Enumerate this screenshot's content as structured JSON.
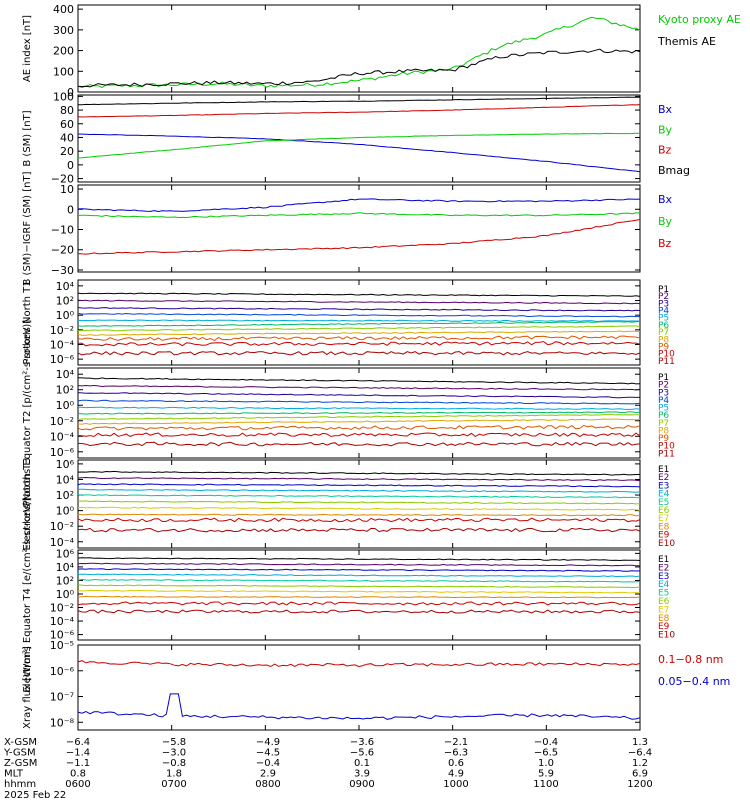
{
  "panels": [
    {
      "id": "ae",
      "ylabel": "AE index [nT]",
      "ytick_labels": [
        "0",
        "100",
        "200",
        "300",
        "400"
      ],
      "ytick_values": [
        0,
        100,
        200,
        300,
        400
      ],
      "ylim": [
        0,
        420
      ],
      "scale": "linear",
      "legend": [
        {
          "text": "Kyoto proxy AE",
          "color": "#00cc00"
        },
        {
          "text": "Themis AE",
          "color": "#000000"
        }
      ]
    },
    {
      "id": "bsm",
      "ylabel": "B (SM) [nT]",
      "ytick_labels": [
        "−20",
        "0",
        "20",
        "40",
        "60",
        "80",
        "100"
      ],
      "ytick_values": [
        -20,
        0,
        20,
        40,
        60,
        80,
        100
      ],
      "ylim": [
        -25,
        102
      ],
      "scale": "linear",
      "legend": [
        {
          "text": "Bx",
          "color": "#0000cc"
        },
        {
          "text": "By",
          "color": "#00cc00"
        },
        {
          "text": "Bz",
          "color": "#cc0000"
        },
        {
          "text": "Bmag",
          "color": "#000000"
        }
      ]
    },
    {
      "id": "bigrf",
      "ylabel": "B (SM)−IGRF (SM) [nT]",
      "ytick_labels": [
        "−30",
        "−20",
        "−10",
        "0",
        "10"
      ],
      "ytick_values": [
        -30,
        -20,
        -10,
        0,
        10
      ],
      "ylim": [
        -31,
        12
      ],
      "scale": "linear",
      "legend": [
        {
          "text": "Bx",
          "color": "#0000cc"
        },
        {
          "text": "By",
          "color": "#00cc00"
        },
        {
          "text": "Bz",
          "color": "#cc0000"
        }
      ]
    },
    {
      "id": "pnt1",
      "ylabel": "Protons North T1",
      "ytick_labels": [
        "10⁴",
        "10²",
        "10⁰",
        "10⁻²",
        "10⁻⁴",
        "10⁻⁶"
      ],
      "ytick_values": [
        4,
        2,
        0,
        -2,
        -4,
        -6
      ],
      "ylim": [
        -6.8,
        4.8
      ],
      "scale": "log",
      "legend_title": "",
      "legend": [
        {
          "text": "P1",
          "color": "#000000"
        },
        {
          "text": "P2",
          "color": "#550066"
        },
        {
          "text": "P3",
          "color": "#220099"
        },
        {
          "text": "P4",
          "color": "#0044dd"
        },
        {
          "text": "P5",
          "color": "#00aadd"
        },
        {
          "text": "P6",
          "color": "#00bb66"
        },
        {
          "text": "P7",
          "color": "#88cc00"
        },
        {
          "text": "P8",
          "color": "#ddaa00"
        },
        {
          "text": "P9",
          "color": "#dd5500"
        },
        {
          "text": "P10",
          "color": "#cc0000"
        },
        {
          "text": "P11",
          "color": "#aa0000"
        }
      ]
    },
    {
      "id": "pet2",
      "ylabel": "Protons Equator T2 [p/(cm²-s-sr-keV)]",
      "ytick_labels": [
        "10⁴",
        "10²",
        "10⁰",
        "10⁻²",
        "10⁻⁴",
        "10⁻⁶"
      ],
      "ytick_values": [
        4,
        2,
        0,
        -2,
        -4,
        -6
      ],
      "ylim": [
        -6.8,
        4.8
      ],
      "scale": "log",
      "legend": [
        {
          "text": "P1",
          "color": "#000000"
        },
        {
          "text": "P2",
          "color": "#550066"
        },
        {
          "text": "P3",
          "color": "#220099"
        },
        {
          "text": "P4",
          "color": "#0044dd"
        },
        {
          "text": "P5",
          "color": "#00aadd"
        },
        {
          "text": "P6",
          "color": "#00bb66"
        },
        {
          "text": "P7",
          "color": "#88cc00"
        },
        {
          "text": "P8",
          "color": "#ddaa00"
        },
        {
          "text": "P9",
          "color": "#dd5500"
        },
        {
          "text": "P10",
          "color": "#cc0000"
        },
        {
          "text": "P11",
          "color": "#aa0000"
        }
      ]
    },
    {
      "id": "ent3",
      "ylabel": "Electrons North T3",
      "ytick_labels": [
        "10⁶",
        "10⁴",
        "10²",
        "10⁰",
        "10⁻²",
        "10⁻⁴"
      ],
      "ytick_values": [
        6,
        4,
        2,
        0,
        -2,
        -4
      ],
      "ylim": [
        -4.8,
        6.5
      ],
      "scale": "log",
      "legend": [
        {
          "text": "E1",
          "color": "#000000"
        },
        {
          "text": "E2",
          "color": "#550066"
        },
        {
          "text": "E3",
          "color": "#0000cc"
        },
        {
          "text": "E4",
          "color": "#00aadd"
        },
        {
          "text": "E5",
          "color": "#00cc99"
        },
        {
          "text": "E6",
          "color": "#88cc00"
        },
        {
          "text": "E7",
          "color": "#ddcc00"
        },
        {
          "text": "E8",
          "color": "#dd8800"
        },
        {
          "text": "E9",
          "color": "#cc0000"
        },
        {
          "text": "E10",
          "color": "#aa0000"
        }
      ]
    },
    {
      "id": "eet4",
      "ylabel": "Electrons Equator T4 [e/(cm²-s-sr-keV)]",
      "ytick_labels": [
        "10⁶",
        "10⁴",
        "10²",
        "10⁰",
        "10⁻²",
        "10⁻⁴",
        "10⁻⁶"
      ],
      "ytick_values": [
        6,
        4,
        2,
        0,
        -2,
        -4,
        -6
      ],
      "ylim": [
        -6.8,
        6.5
      ],
      "scale": "log",
      "legend": [
        {
          "text": "E1",
          "color": "#000000"
        },
        {
          "text": "E2",
          "color": "#550066"
        },
        {
          "text": "E3",
          "color": "#0000cc"
        },
        {
          "text": "E4",
          "color": "#00aadd"
        },
        {
          "text": "E5",
          "color": "#00cc99"
        },
        {
          "text": "E6",
          "color": "#88cc00"
        },
        {
          "text": "E7",
          "color": "#ddcc00"
        },
        {
          "text": "E8",
          "color": "#dd8800"
        },
        {
          "text": "E9",
          "color": "#cc0000"
        },
        {
          "text": "E10",
          "color": "#aa0000"
        }
      ]
    },
    {
      "id": "xray",
      "ylabel": "Xray flux [W/m²]",
      "ytick_labels": [
        "10⁻⁵",
        "10⁻⁶",
        "10⁻⁷",
        "10⁻⁸"
      ],
      "ytick_values": [
        -5,
        -6,
        -7,
        -8
      ],
      "ylim": [
        -8.3,
        -5.0
      ],
      "scale": "log",
      "legend": [
        {
          "text": "0.1−0.8 nm",
          "color": "#cc0000"
        },
        {
          "text": "0.05−0.4 nm",
          "color": "#0000cc"
        }
      ]
    }
  ],
  "ephemeris": {
    "rows": [
      {
        "label": "X-GSM",
        "values": [
          "−6.4",
          "−5.8",
          "−4.9",
          "−3.6",
          "−2.1",
          "−0.4",
          "1.3"
        ]
      },
      {
        "label": "Y-GSM",
        "values": [
          "−1.4",
          "−3.0",
          "−4.5",
          "−5.6",
          "−6.3",
          "−6.5",
          "−6.4"
        ]
      },
      {
        "label": "Z-GSM",
        "values": [
          "−1.1",
          "−0.8",
          "−0.4",
          "0.1",
          "0.6",
          "1.0",
          "1.2"
        ]
      },
      {
        "label": "MLT",
        "values": [
          "0.8",
          "1.8",
          "2.9",
          "3.9",
          "4.9",
          "5.9",
          "6.9"
        ]
      },
      {
        "label": "hhmm",
        "values": [
          "0600",
          "0700",
          "0800",
          "0900",
          "1000",
          "1100",
          "1200"
        ]
      }
    ],
    "date": "2025 Feb 22"
  },
  "chart_data": [
    {
      "type": "line",
      "panel": "ae",
      "ylabel": "AE index [nT]",
      "x": [
        "0600",
        "0630",
        "0700",
        "0730",
        "0800",
        "0830",
        "0900",
        "0930",
        "1000",
        "1030",
        "1100",
        "1130",
        "1200"
      ],
      "series": [
        {
          "name": "Kyoto proxy AE",
          "values": [
            25,
            30,
            35,
            40,
            30,
            35,
            55,
            90,
            110,
            220,
            280,
            360,
            300
          ]
        },
        {
          "name": "Themis AE",
          "values": [
            30,
            35,
            40,
            45,
            40,
            50,
            90,
            100,
            105,
            170,
            190,
            200,
            195
          ]
        }
      ],
      "ylim": [
        0,
        420
      ]
    },
    {
      "type": "line",
      "panel": "bsm",
      "ylabel": "B (SM) [nT]",
      "x": [
        "0600",
        "0700",
        "0800",
        "0900",
        "1000",
        "1100",
        "1200"
      ],
      "series": [
        {
          "name": "Bx",
          "values": [
            45,
            42,
            38,
            30,
            18,
            5,
            -10
          ]
        },
        {
          "name": "By",
          "values": [
            10,
            22,
            35,
            40,
            43,
            45,
            46
          ]
        },
        {
          "name": "Bz",
          "values": [
            70,
            72,
            75,
            77,
            80,
            84,
            88
          ]
        },
        {
          "name": "Bmag",
          "values": [
            88,
            90,
            92,
            93,
            95,
            97,
            99
          ]
        }
      ],
      "ylim": [
        -25,
        102
      ]
    },
    {
      "type": "line",
      "panel": "bigrf",
      "ylabel": "B (SM)−IGRF (SM) [nT]",
      "x": [
        "0600",
        "0700",
        "0800",
        "0900",
        "1000",
        "1100",
        "1200"
      ],
      "series": [
        {
          "name": "Bx",
          "values": [
            0,
            -1,
            1,
            5,
            4,
            4,
            5
          ]
        },
        {
          "name": "By",
          "values": [
            -3,
            -4,
            -3,
            -2,
            -3,
            -3,
            -2
          ]
        },
        {
          "name": "Bz",
          "values": [
            -22,
            -21,
            -20,
            -19,
            -17,
            -13,
            -5
          ]
        }
      ],
      "ylim": [
        -31,
        12
      ]
    },
    {
      "type": "line",
      "panel": "pnt1",
      "ylabel": "Protons North T1",
      "x": [
        "0600",
        "1200"
      ],
      "series": [
        {
          "name": "P1",
          "values": [
            3.0,
            2.6
          ]
        },
        {
          "name": "P2",
          "values": [
            2.0,
            1.6
          ]
        },
        {
          "name": "P3",
          "values": [
            1.0,
            0.6
          ]
        },
        {
          "name": "P4",
          "values": [
            0.2,
            -0.2
          ]
        },
        {
          "name": "P5",
          "values": [
            -0.7,
            -0.8
          ]
        },
        {
          "name": "P6",
          "values": [
            -1.5,
            -0.9
          ]
        },
        {
          "name": "P7",
          "values": [
            -2.1,
            -1.5
          ]
        },
        {
          "name": "P8",
          "values": [
            -2.7,
            -2.2
          ]
        },
        {
          "name": "P9",
          "values": [
            -3.3,
            -3.0
          ]
        },
        {
          "name": "P10",
          "values": [
            -4.0,
            -3.8
          ]
        },
        {
          "name": "P11",
          "values": [
            -5.2,
            -5.2
          ]
        }
      ]
    },
    {
      "type": "line",
      "panel": "pet2",
      "ylabel": "Protons Equator T2 [p/(cm²-s-sr-keV)]",
      "x": [
        "0600",
        "1200"
      ],
      "series": [
        {
          "name": "P1",
          "values": [
            3.5,
            2.8
          ]
        },
        {
          "name": "P2",
          "values": [
            2.5,
            2.0
          ]
        },
        {
          "name": "P3",
          "values": [
            1.6,
            1.0
          ]
        },
        {
          "name": "P4",
          "values": [
            0.6,
            0.2
          ]
        },
        {
          "name": "P5",
          "values": [
            -0.3,
            -0.5
          ]
        },
        {
          "name": "P6",
          "values": [
            -1.1,
            -0.9
          ]
        },
        {
          "name": "P7",
          "values": [
            -1.8,
            -1.2
          ]
        },
        {
          "name": "P8",
          "values": [
            -2.4,
            -1.8
          ]
        },
        {
          "name": "P9",
          "values": [
            -3.0,
            -2.8
          ]
        },
        {
          "name": "P10",
          "values": [
            -3.8,
            -3.8
          ]
        },
        {
          "name": "P11",
          "values": [
            -5.0,
            -5.0
          ]
        }
      ]
    },
    {
      "type": "line",
      "panel": "ent3",
      "ylabel": "Electrons North T3",
      "x": [
        "0600",
        "1200"
      ],
      "series": [
        {
          "name": "E1",
          "values": [
            5.0,
            4.6
          ]
        },
        {
          "name": "E2",
          "values": [
            4.2,
            3.9
          ]
        },
        {
          "name": "E3",
          "values": [
            3.4,
            3.1
          ]
        },
        {
          "name": "E4",
          "values": [
            2.7,
            2.4
          ]
        },
        {
          "name": "E5",
          "values": [
            2.0,
            1.7
          ]
        },
        {
          "name": "E6",
          "values": [
            1.2,
            0.9
          ]
        },
        {
          "name": "E7",
          "values": [
            0.4,
            0.1
          ]
        },
        {
          "name": "E8",
          "values": [
            -0.5,
            -0.6
          ]
        },
        {
          "name": "E9",
          "values": [
            -1.2,
            -1.2
          ]
        },
        {
          "name": "E10",
          "values": [
            -2.5,
            -2.5
          ]
        }
      ]
    },
    {
      "type": "line",
      "panel": "eet4",
      "ylabel": "Electrons Equator T4 [e/(cm²-s-sr-keV)]",
      "x": [
        "0600",
        "1200"
      ],
      "series": [
        {
          "name": "E1",
          "values": [
            5.3,
            5.0
          ]
        },
        {
          "name": "E2",
          "values": [
            4.5,
            4.2
          ]
        },
        {
          "name": "E3",
          "values": [
            3.7,
            3.4
          ]
        },
        {
          "name": "E4",
          "values": [
            2.9,
            2.6
          ]
        },
        {
          "name": "E5",
          "values": [
            2.1,
            1.8
          ]
        },
        {
          "name": "E6",
          "values": [
            1.3,
            1.0
          ]
        },
        {
          "name": "E7",
          "values": [
            0.5,
            0.2
          ]
        },
        {
          "name": "E8",
          "values": [
            -0.4,
            -0.5
          ]
        },
        {
          "name": "E9",
          "values": [
            -1.4,
            -1.4
          ]
        },
        {
          "name": "E10",
          "values": [
            -2.6,
            -2.6
          ]
        }
      ]
    },
    {
      "type": "line",
      "panel": "xray",
      "ylabel": "Xray flux [W/m²]",
      "x": [
        "0600",
        "0700",
        "0800",
        "0900",
        "1000",
        "1100",
        "1200"
      ],
      "series": [
        {
          "name": "0.1−0.8 nm",
          "values": [
            -5.65,
            -5.75,
            -5.78,
            -5.78,
            -5.76,
            -5.74,
            -5.75
          ]
        },
        {
          "name": "0.05−0.4 nm",
          "values": [
            -7.6,
            -7.75,
            -7.8,
            -7.85,
            -7.78,
            -7.72,
            -7.85
          ]
        }
      ],
      "ylim": [
        -8.3,
        -5.0
      ]
    }
  ]
}
